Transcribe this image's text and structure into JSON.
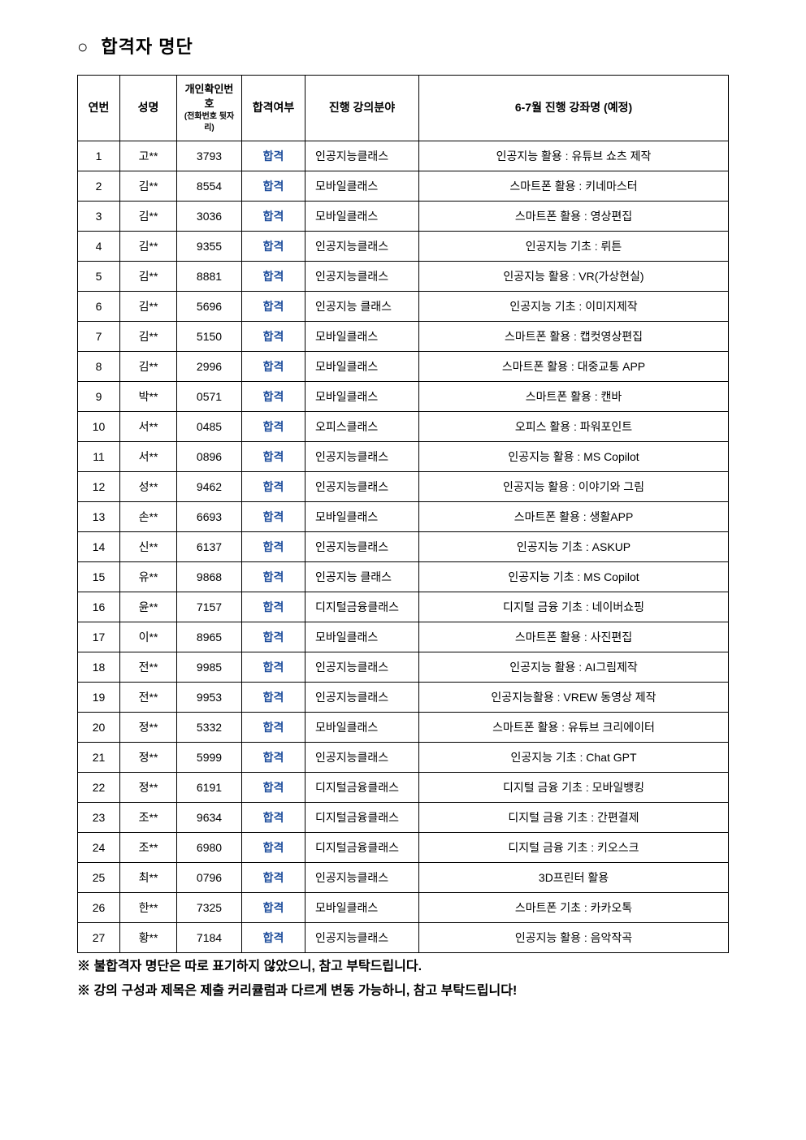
{
  "title": "합격자 명단",
  "bullet": "○",
  "columns": {
    "no": "연번",
    "name": "성명",
    "id_main": "개인확인번호",
    "id_sub": "(전화번호 뒷자리)",
    "pass": "합격여부",
    "field": "진행 강의분야",
    "course": "6-7월 진행 강좌명 (예정)"
  },
  "pass_label": "합격",
  "rows": [
    {
      "no": "1",
      "name": "고**",
      "id": "3793",
      "field": "인공지능클래스",
      "course": "인공지능 활용 : 유튜브 쇼츠 제작"
    },
    {
      "no": "2",
      "name": "김**",
      "id": "8554",
      "field": "모바일클래스",
      "course": "스마트폰 활용 : 키네마스터"
    },
    {
      "no": "3",
      "name": "김**",
      "id": "3036",
      "field": "모바일클래스",
      "course": "스마트폰 활용 : 영상편집"
    },
    {
      "no": "4",
      "name": "김**",
      "id": "9355",
      "field": "인공지능클래스",
      "course": "인공지능 기초 : 뤼튼"
    },
    {
      "no": "5",
      "name": "김**",
      "id": "8881",
      "field": "인공지능클래스",
      "course": "인공지능 활용 : VR(가상현실)"
    },
    {
      "no": "6",
      "name": "김**",
      "id": "5696",
      "field": "인공지능 클래스",
      "course": "인공지능 기초 : 이미지제작"
    },
    {
      "no": "7",
      "name": "김**",
      "id": "5150",
      "field": "모바일클래스",
      "course": "스마트폰 활용 : 캡컷영상편집"
    },
    {
      "no": "8",
      "name": "김**",
      "id": "2996",
      "field": "모바일클래스",
      "course": "스마트폰 활용 : 대중교통 APP"
    },
    {
      "no": "9",
      "name": "박**",
      "id": "0571",
      "field": "모바일클래스",
      "course": "스마트폰 활용 : 캔바"
    },
    {
      "no": "10",
      "name": "서**",
      "id": "0485",
      "field": "오피스클래스",
      "course": "오피스 활용 : 파워포인트"
    },
    {
      "no": "11",
      "name": "서**",
      "id": "0896",
      "field": "인공지능클래스",
      "course": "인공지능 활용 : MS Copilot"
    },
    {
      "no": "12",
      "name": "성**",
      "id": "9462",
      "field": "인공지능클래스",
      "course": "인공지능 활용 : 이야기와 그림"
    },
    {
      "no": "13",
      "name": "손**",
      "id": "6693",
      "field": "모바일클래스",
      "course": "스마트폰 활용 : 생활APP"
    },
    {
      "no": "14",
      "name": "신**",
      "id": "6137",
      "field": "인공지능클래스",
      "course": "인공지능 기초 : ASKUP"
    },
    {
      "no": "15",
      "name": "유**",
      "id": "9868",
      "field": "인공지능 클래스",
      "course": "인공지능 기초 : MS Copilot"
    },
    {
      "no": "16",
      "name": "윤**",
      "id": "7157",
      "field": "디지털금융클래스",
      "course": "디지털 금융 기초 : 네이버쇼핑"
    },
    {
      "no": "17",
      "name": "이**",
      "id": "8965",
      "field": "모바일클래스",
      "course": "스마트폰 활용 : 사진편집"
    },
    {
      "no": "18",
      "name": "전**",
      "id": "9985",
      "field": "인공지능클래스",
      "course": "인공지능 활용 : AI그림제작"
    },
    {
      "no": "19",
      "name": "전**",
      "id": "9953",
      "field": "인공지능클래스",
      "course": "인공지능활용 : VREW 동영상 제작"
    },
    {
      "no": "20",
      "name": "정**",
      "id": "5332",
      "field": "모바일클래스",
      "course": "스마트폰 활용 : 유튜브 크리에이터"
    },
    {
      "no": "21",
      "name": "정**",
      "id": "5999",
      "field": "인공지능클래스",
      "course": "인공지능 기초 : Chat GPT"
    },
    {
      "no": "22",
      "name": "정**",
      "id": "6191",
      "field": "디지털금융클래스",
      "course": "디지털 금융 기초 : 모바일뱅킹"
    },
    {
      "no": "23",
      "name": "조**",
      "id": "9634",
      "field": "디지털금융클래스",
      "course": "디지털 금융 기초 : 간편결제"
    },
    {
      "no": "24",
      "name": "조**",
      "id": "6980",
      "field": "디지털금융클래스",
      "course": "디지털 금융 기초 : 키오스크"
    },
    {
      "no": "25",
      "name": "최**",
      "id": "0796",
      "field": "인공지능클래스",
      "course": "3D프린터 활용"
    },
    {
      "no": "26",
      "name": "한**",
      "id": "7325",
      "field": "모바일클래스",
      "course": "스마트폰 기초 : 카카오톡"
    },
    {
      "no": "27",
      "name": "황**",
      "id": "7184",
      "field": "인공지능클래스",
      "course": "인공지능 활용 : 음악작곡"
    }
  ],
  "footnotes": [
    "※ 불합격자 명단은 따로 표기하지 않았으니, 참고 부탁드립니다.",
    "※ 강의 구성과 제목은 제출 커리큘럼과 다르게 변동 가능하니, 참고 부탁드립니다!"
  ],
  "colors": {
    "pass_color": "#1f4e9c",
    "border_color": "#000000",
    "text_color": "#000000",
    "background_color": "#ffffff"
  }
}
